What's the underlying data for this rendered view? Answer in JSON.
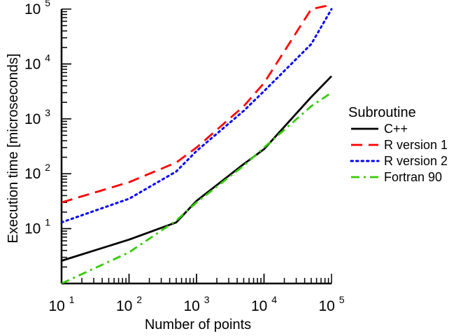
{
  "chart_data": {
    "type": "line",
    "xlabel": "Number of points",
    "ylabel": "Execution time [microseconds]",
    "x_scale": "log",
    "y_scale": "log",
    "xlim": [
      10,
      100000
    ],
    "ylim": [
      1,
      100000
    ],
    "x_ticks": [
      {
        "value": 10,
        "base": "10",
        "exp": "1"
      },
      {
        "value": 100,
        "base": "10",
        "exp": "2"
      },
      {
        "value": 1000,
        "base": "10",
        "exp": "3"
      },
      {
        "value": 10000,
        "base": "10",
        "exp": "4"
      },
      {
        "value": 100000,
        "base": "10",
        "exp": "5"
      }
    ],
    "y_ticks": [
      {
        "value": 10,
        "base": "10",
        "exp": "1"
      },
      {
        "value": 100,
        "base": "10",
        "exp": "2"
      },
      {
        "value": 1000,
        "base": "10",
        "exp": "3"
      },
      {
        "value": 10000,
        "base": "10",
        "exp": "4"
      },
      {
        "value": 100000,
        "base": "10",
        "exp": "5"
      }
    ],
    "grid": false,
    "legend": {
      "title": "Subroutine",
      "position": "right"
    },
    "series": [
      {
        "name": "C++",
        "color": "#000000",
        "dash": "solid",
        "points": [
          [
            10,
            2.6
          ],
          [
            100,
            6.3
          ],
          [
            500,
            13
          ],
          [
            1000,
            32
          ],
          [
            5000,
            150
          ],
          [
            10000,
            280
          ],
          [
            50000,
            2500
          ],
          [
            100000,
            6000
          ]
        ]
      },
      {
        "name": "R version 1",
        "color": "#ff0000",
        "dash": "dashed",
        "points": [
          [
            10,
            30
          ],
          [
            100,
            70
          ],
          [
            500,
            160
          ],
          [
            1000,
            300
          ],
          [
            5000,
            1700
          ],
          [
            10000,
            4500
          ],
          [
            50000,
            100000
          ],
          [
            100000,
            120000
          ]
        ]
      },
      {
        "name": "R version 2",
        "color": "#0000ff",
        "dash": "dotted",
        "points": [
          [
            10,
            13
          ],
          [
            100,
            35
          ],
          [
            500,
            110
          ],
          [
            1000,
            260
          ],
          [
            5000,
            1400
          ],
          [
            10000,
            3200
          ],
          [
            50000,
            23000
          ],
          [
            100000,
            100000
          ]
        ]
      },
      {
        "name": "Fortran 90",
        "color": "#33cc00",
        "dash": "dashdot",
        "points": [
          [
            10,
            1
          ],
          [
            100,
            3.7
          ],
          [
            500,
            14
          ],
          [
            1000,
            30
          ],
          [
            5000,
            140
          ],
          [
            10000,
            300
          ],
          [
            50000,
            1700
          ],
          [
            100000,
            3000
          ]
        ]
      }
    ]
  }
}
